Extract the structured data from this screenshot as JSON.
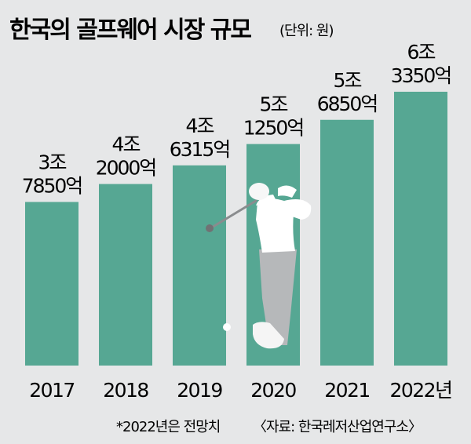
{
  "title": "한국의 골프웨어 시장 규모",
  "unit": "(단위: 원)",
  "footnote": "*2022년은 전망치",
  "source": "〈자료: 한국레저산업연구소〉",
  "colors": {
    "bar": "#56a793",
    "background": "#e6e7e8",
    "text": "#231f20"
  },
  "chart_data": {
    "type": "bar",
    "title": "한국의 골프웨어 시장 규모",
    "ylabel": "(단위: 원)",
    "categories": [
      "2017",
      "2018",
      "2019",
      "2020",
      "2021",
      "2022년"
    ],
    "values": [
      37850,
      42000,
      46315,
      51250,
      56850,
      63350
    ],
    "value_unit": "억원",
    "labels": [
      [
        "3조",
        "7850억"
      ],
      [
        "4조",
        "2000억"
      ],
      [
        "4조",
        "6315억"
      ],
      [
        "5조",
        "1250억"
      ],
      [
        "5조",
        "6850억"
      ],
      [
        "6조",
        "3350억"
      ]
    ],
    "grid": false,
    "legend": "none"
  }
}
